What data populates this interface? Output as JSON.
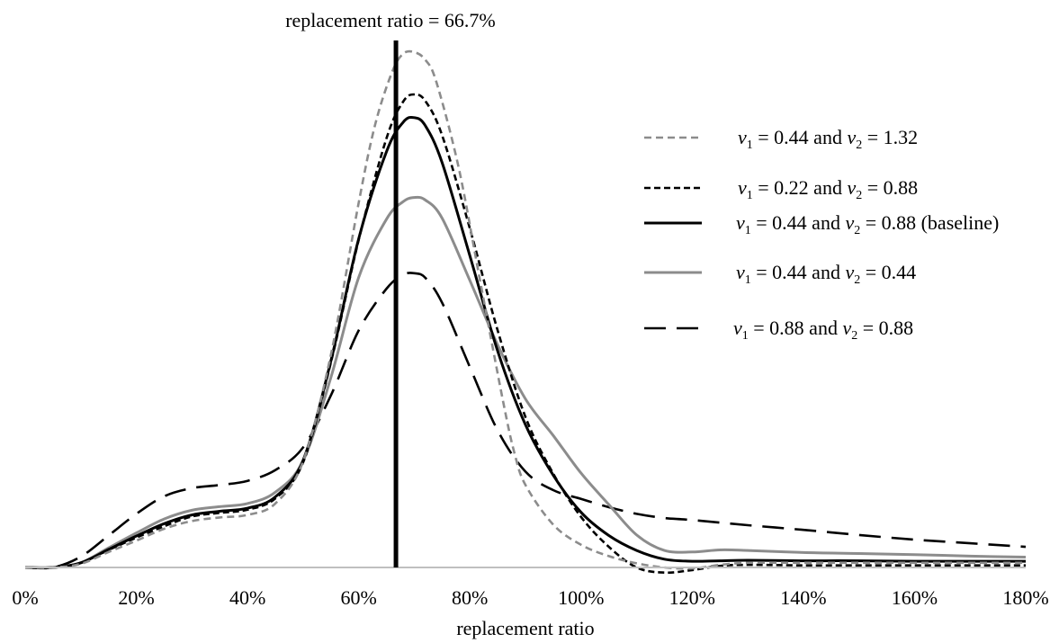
{
  "chart_data": {
    "type": "line",
    "xlabel": "replacement ratio",
    "ylabel": "",
    "xlim": [
      0,
      180
    ],
    "ylim": [
      0,
      1
    ],
    "x_ticks": [
      "0%",
      "20%",
      "40%",
      "60%",
      "80%",
      "100%",
      "120%",
      "140%",
      "160%",
      "180%"
    ],
    "x_tick_values": [
      0,
      20,
      40,
      60,
      80,
      100,
      120,
      140,
      160,
      180
    ],
    "y_ticks_visible": false,
    "grid": false,
    "legend": "top-right",
    "reference_line": {
      "x": 66.7,
      "label": "replacement ratio = 66.7%"
    },
    "series": [
      {
        "id": "s1",
        "v1": "0.44",
        "v2": "1.32",
        "suffix": "",
        "style": "short-dash",
        "color": "#8c8c8c",
        "x": [
          0,
          5,
          10,
          15,
          20,
          25,
          30,
          35,
          40,
          45,
          50,
          55,
          60,
          63,
          66,
          68,
          70,
          72,
          74,
          78,
          82,
          86,
          88,
          90,
          95,
          100,
          105,
          110,
          115,
          120,
          125,
          130,
          140,
          150,
          160,
          170,
          180
        ],
        "y": [
          0.0,
          0.0,
          0.007,
          0.03,
          0.052,
          0.075,
          0.09,
          0.097,
          0.102,
          0.124,
          0.206,
          0.413,
          0.708,
          0.861,
          0.961,
          0.997,
          1.0,
          0.985,
          0.941,
          0.775,
          0.547,
          0.321,
          0.223,
          0.16,
          0.083,
          0.044,
          0.022,
          0.008,
          0.0,
          -0.002,
          0.005,
          0.009,
          0.009,
          0.009,
          0.009,
          0.009,
          0.009
        ]
      },
      {
        "id": "s2",
        "v1": "0.22",
        "v2": "0.88",
        "suffix": "",
        "style": "dotted-dash",
        "color": "#000000",
        "x": [
          0,
          5,
          10,
          15,
          20,
          25,
          30,
          35,
          40,
          45,
          50,
          55,
          60,
          65,
          68,
          70,
          72,
          75,
          80,
          85,
          90,
          95,
          100,
          105,
          110,
          115,
          120,
          125,
          130,
          140,
          150,
          160,
          170,
          180
        ],
        "y": [
          0.0,
          0.0,
          0.009,
          0.034,
          0.058,
          0.08,
          0.099,
          0.106,
          0.112,
          0.134,
          0.204,
          0.398,
          0.636,
          0.833,
          0.904,
          0.918,
          0.905,
          0.839,
          0.658,
          0.46,
          0.292,
          0.182,
          0.098,
          0.04,
          0.0,
          -0.01,
          -0.005,
          0.003,
          0.005,
          0.004,
          0.004,
          0.004,
          0.004,
          0.004
        ]
      },
      {
        "id": "s3",
        "v1": "0.44",
        "v2": "0.88",
        "suffix": "(baseline)",
        "style": "solid",
        "color": "#000000",
        "x": [
          0,
          5,
          10,
          15,
          20,
          25,
          30,
          35,
          40,
          45,
          50,
          55,
          60,
          65,
          68,
          70,
          72,
          75,
          80,
          85,
          90,
          95,
          100,
          105,
          110,
          115,
          120,
          125,
          130,
          140,
          150,
          160,
          170,
          180
        ],
        "y": [
          0.0,
          0.0,
          0.009,
          0.035,
          0.061,
          0.085,
          0.102,
          0.109,
          0.115,
          0.137,
          0.208,
          0.401,
          0.638,
          0.807,
          0.864,
          0.873,
          0.857,
          0.786,
          0.605,
          0.42,
          0.277,
          0.179,
          0.107,
          0.062,
          0.033,
          0.016,
          0.012,
          0.013,
          0.014,
          0.013,
          0.013,
          0.012,
          0.012,
          0.012
        ]
      },
      {
        "id": "s4",
        "v1": "0.44",
        "v2": "0.44",
        "suffix": "",
        "style": "solid",
        "color": "#8c8c8c",
        "x": [
          0,
          5,
          10,
          15,
          20,
          25,
          30,
          35,
          40,
          45,
          50,
          55,
          60,
          65,
          68,
          70,
          72,
          75,
          80,
          85,
          90,
          95,
          100,
          105,
          110,
          115,
          120,
          125,
          130,
          140,
          150,
          160,
          170,
          180
        ],
        "y": [
          0.0,
          0.0,
          0.009,
          0.038,
          0.067,
          0.094,
          0.111,
          0.118,
          0.124,
          0.146,
          0.207,
          0.369,
          0.563,
          0.676,
          0.71,
          0.718,
          0.713,
          0.678,
          0.557,
          0.432,
          0.327,
          0.256,
          0.183,
          0.122,
          0.063,
          0.033,
          0.03,
          0.034,
          0.033,
          0.029,
          0.027,
          0.025,
          0.022,
          0.02
        ]
      },
      {
        "id": "s5",
        "v1": "0.88",
        "v2": "0.88",
        "suffix": "",
        "style": "long-dash",
        "color": "#000000",
        "x": [
          0,
          5,
          10,
          15,
          20,
          25,
          30,
          35,
          40,
          45,
          50,
          55,
          60,
          65,
          68,
          70,
          72,
          75,
          80,
          85,
          90,
          95,
          100,
          105,
          110,
          115,
          120,
          130,
          140,
          150,
          160,
          170,
          180
        ],
        "y": [
          0.0,
          0.0,
          0.021,
          0.062,
          0.104,
          0.138,
          0.154,
          0.16,
          0.168,
          0.189,
          0.233,
          0.334,
          0.46,
          0.541,
          0.568,
          0.571,
          0.562,
          0.514,
          0.389,
          0.266,
          0.186,
          0.15,
          0.133,
          0.117,
          0.104,
          0.096,
          0.092,
          0.082,
          0.073,
          0.063,
          0.054,
          0.047,
          0.04
        ]
      }
    ]
  },
  "legend": {
    "and_word": "and",
    "eq": "=",
    "var_letter": "v",
    "sub1": "1",
    "sub2": "2"
  }
}
